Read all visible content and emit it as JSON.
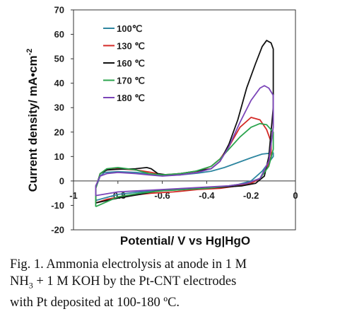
{
  "chart_data": {
    "type": "line",
    "xlabel": "Potential/ V vs Hg|HgO",
    "ylabel": "Current density/ mA•cm",
    "ylabel_sup": "-2",
    "xlim": [
      -1,
      0
    ],
    "ylim": [
      -20,
      70
    ],
    "x_ticks": [
      -1,
      -0.8,
      -0.6,
      -0.4,
      -0.2,
      0
    ],
    "x_tick_labels": [
      "-1",
      "-0.8",
      "-0.6",
      "-0.4",
      "-0.2",
      "0"
    ],
    "y_ticks": [
      -20,
      -10,
      0,
      10,
      20,
      30,
      40,
      50,
      60,
      70
    ],
    "y_tick_labels": [
      "-20",
      "-10",
      "0",
      "10",
      "20",
      "30",
      "40",
      "50",
      "60",
      "70"
    ],
    "grid": false,
    "legend_position": "top-left",
    "series": [
      {
        "name": "100℃",
        "color": "#2e86a0",
        "points": [
          [
            -0.9,
            -8
          ],
          [
            -0.9,
            -3
          ],
          [
            -0.88,
            2
          ],
          [
            -0.86,
            3.5
          ],
          [
            -0.8,
            3.8
          ],
          [
            -0.72,
            3.5
          ],
          [
            -0.65,
            2.8
          ],
          [
            -0.6,
            2.2
          ],
          [
            -0.52,
            2.5
          ],
          [
            -0.44,
            3.2
          ],
          [
            -0.38,
            4
          ],
          [
            -0.32,
            5.5
          ],
          [
            -0.26,
            7.5
          ],
          [
            -0.2,
            9.5
          ],
          [
            -0.15,
            11
          ],
          [
            -0.1,
            11.5
          ],
          [
            -0.1,
            10
          ],
          [
            -0.15,
            4
          ],
          [
            -0.2,
            0
          ],
          [
            -0.26,
            -1.5
          ],
          [
            -0.32,
            -2.5
          ],
          [
            -0.4,
            -3
          ],
          [
            -0.5,
            -3.5
          ],
          [
            -0.6,
            -4
          ],
          [
            -0.7,
            -4.5
          ],
          [
            -0.8,
            -5.5
          ],
          [
            -0.9,
            -8
          ]
        ]
      },
      {
        "name": "130 ℃",
        "color": "#d42a26",
        "points": [
          [
            -0.9,
            -9
          ],
          [
            -0.9,
            -3
          ],
          [
            -0.88,
            3
          ],
          [
            -0.85,
            4.5
          ],
          [
            -0.8,
            5
          ],
          [
            -0.72,
            4.5
          ],
          [
            -0.65,
            3.5
          ],
          [
            -0.6,
            2.5
          ],
          [
            -0.52,
            3
          ],
          [
            -0.44,
            4
          ],
          [
            -0.38,
            6
          ],
          [
            -0.34,
            9
          ],
          [
            -0.3,
            14
          ],
          [
            -0.25,
            22
          ],
          [
            -0.2,
            26
          ],
          [
            -0.16,
            25
          ],
          [
            -0.13,
            21
          ],
          [
            -0.11,
            16
          ],
          [
            -0.11,
            10
          ],
          [
            -0.13,
            5
          ],
          [
            -0.16,
            1
          ],
          [
            -0.2,
            -1
          ],
          [
            -0.26,
            -2
          ],
          [
            -0.34,
            -3
          ],
          [
            -0.44,
            -3.5
          ],
          [
            -0.55,
            -4.5
          ],
          [
            -0.65,
            -5
          ],
          [
            -0.75,
            -6
          ],
          [
            -0.85,
            -7.5
          ],
          [
            -0.9,
            -9
          ]
        ]
      },
      {
        "name": "160 ℃",
        "color": "#111111",
        "points": [
          [
            -0.9,
            -9
          ],
          [
            -0.9,
            -3
          ],
          [
            -0.88,
            3
          ],
          [
            -0.85,
            4.5
          ],
          [
            -0.8,
            4.8
          ],
          [
            -0.72,
            5
          ],
          [
            -0.67,
            5.5
          ],
          [
            -0.65,
            5
          ],
          [
            -0.62,
            3
          ],
          [
            -0.58,
            2.5
          ],
          [
            -0.52,
            3
          ],
          [
            -0.45,
            4
          ],
          [
            -0.38,
            5
          ],
          [
            -0.34,
            8
          ],
          [
            -0.3,
            15
          ],
          [
            -0.26,
            25
          ],
          [
            -0.22,
            38
          ],
          [
            -0.18,
            48
          ],
          [
            -0.15,
            55
          ],
          [
            -0.13,
            57.5
          ],
          [
            -0.11,
            56.5
          ],
          [
            -0.1,
            54
          ],
          [
            -0.1,
            30
          ],
          [
            -0.12,
            10
          ],
          [
            -0.14,
            2
          ],
          [
            -0.18,
            -1
          ],
          [
            -0.24,
            -2
          ],
          [
            -0.32,
            -2.5
          ],
          [
            -0.42,
            -3
          ],
          [
            -0.52,
            -3.5
          ],
          [
            -0.62,
            -4
          ],
          [
            -0.7,
            -5.5
          ],
          [
            -0.8,
            -7
          ],
          [
            -0.9,
            -9
          ]
        ]
      },
      {
        "name": "170 ℃",
        "color": "#2ca44e",
        "points": [
          [
            -0.9,
            -10.5
          ],
          [
            -0.9,
            -3
          ],
          [
            -0.88,
            3
          ],
          [
            -0.85,
            5
          ],
          [
            -0.8,
            5.5
          ],
          [
            -0.72,
            4.5
          ],
          [
            -0.66,
            3
          ],
          [
            -0.6,
            2.5
          ],
          [
            -0.52,
            3
          ],
          [
            -0.45,
            4
          ],
          [
            -0.38,
            6
          ],
          [
            -0.34,
            9
          ],
          [
            -0.3,
            13
          ],
          [
            -0.25,
            18
          ],
          [
            -0.2,
            22
          ],
          [
            -0.16,
            23.5
          ],
          [
            -0.13,
            23
          ],
          [
            -0.1,
            20
          ],
          [
            -0.1,
            13
          ],
          [
            -0.12,
            6
          ],
          [
            -0.16,
            1
          ],
          [
            -0.22,
            -1
          ],
          [
            -0.3,
            -2
          ],
          [
            -0.4,
            -3
          ],
          [
            -0.5,
            -3.5
          ],
          [
            -0.6,
            -4
          ],
          [
            -0.7,
            -5
          ],
          [
            -0.8,
            -6.5
          ],
          [
            -0.9,
            -10.5
          ]
        ]
      },
      {
        "name": "180 ℃",
        "color": "#7b45b8",
        "points": [
          [
            -0.9,
            -6
          ],
          [
            -0.9,
            -2
          ],
          [
            -0.88,
            2
          ],
          [
            -0.85,
            3
          ],
          [
            -0.8,
            3.5
          ],
          [
            -0.72,
            3
          ],
          [
            -0.66,
            2.5
          ],
          [
            -0.6,
            2
          ],
          [
            -0.52,
            2.5
          ],
          [
            -0.44,
            3.5
          ],
          [
            -0.38,
            5
          ],
          [
            -0.34,
            8
          ],
          [
            -0.3,
            14
          ],
          [
            -0.25,
            24
          ],
          [
            -0.2,
            33
          ],
          [
            -0.16,
            38
          ],
          [
            -0.14,
            39
          ],
          [
            -0.12,
            38
          ],
          [
            -0.1,
            35
          ],
          [
            -0.1,
            22
          ],
          [
            -0.12,
            8
          ],
          [
            -0.16,
            1
          ],
          [
            -0.22,
            -1
          ],
          [
            -0.3,
            -2
          ],
          [
            -0.4,
            -2.5
          ],
          [
            -0.5,
            -3
          ],
          [
            -0.6,
            -3.5
          ],
          [
            -0.7,
            -4
          ],
          [
            -0.8,
            -4.5
          ],
          [
            -0.9,
            -6
          ]
        ]
      }
    ]
  },
  "caption": {
    "line1": "Fig. 1. Ammonia electrolysis at anode in 1 M",
    "line2_pre": "NH",
    "line2_sub": "3",
    "line2_post": " + 1 M KOH by the Pt-CNT electrodes",
    "line3": "with Pt deposited at 100-180 ºC."
  }
}
